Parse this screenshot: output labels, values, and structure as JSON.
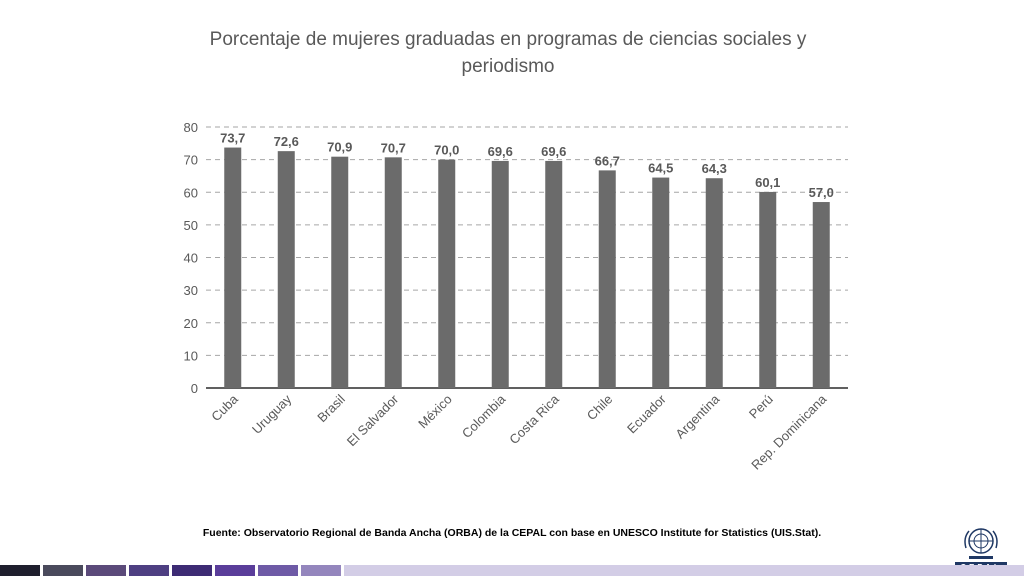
{
  "header": {
    "title_line1": "Porcentaje de mujeres graduadas en programas de ciencias sociales y",
    "title_line2": "periodismo"
  },
  "chart_data": {
    "type": "bar",
    "title": "Porcentaje de mujeres graduadas en programas de ciencias sociales y periodismo",
    "xlabel": "",
    "ylabel": "",
    "categories": [
      "Cuba",
      "Uruguay",
      "Brasil",
      "El Salvador",
      "México",
      "Colombia",
      "Costa Rica",
      "Chile",
      "Ecuador",
      "Argentina",
      "Perú",
      "Rep. Dominicana"
    ],
    "values": [
      73.7,
      72.6,
      70.9,
      70.7,
      70.0,
      69.6,
      69.6,
      66.7,
      64.5,
      64.3,
      60.1,
      57.0
    ],
    "value_labels": [
      "73,7",
      "72,6",
      "70,9",
      "70,7",
      "70,0",
      "69,6",
      "69,6",
      "66,7",
      "64,5",
      "64,3",
      "60,1",
      "57,0"
    ],
    "ylim": [
      0,
      80
    ],
    "yticks": [
      0,
      10,
      20,
      30,
      40,
      50,
      60,
      70,
      80
    ],
    "grid": true,
    "grid_style": "dashed",
    "legend": "none",
    "bar_color": "#6b6b6b"
  },
  "footer": {
    "source": "Fuente: Observatorio Regional de Banda Ancha (ORBA) de la CEPAL con base en UNESCO Institute for Statistics (UIS.Stat).",
    "logo_text": "CEPAL",
    "stripe_colors": [
      "#1f1f2e",
      "#4a4a5c",
      "#5b4a7a",
      "#4e3f82",
      "#3d2b74",
      "#5a3d9a",
      "#6e5aa6",
      "#9486bd",
      "#d3cde6"
    ]
  }
}
